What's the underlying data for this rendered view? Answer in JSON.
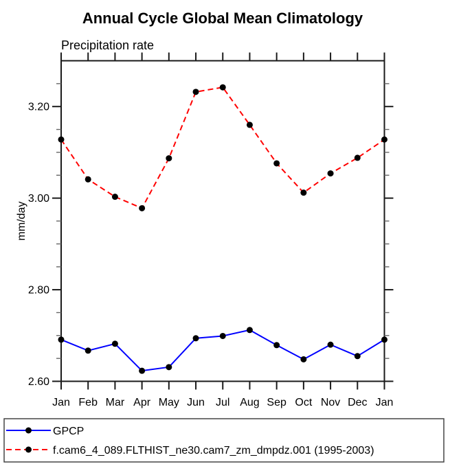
{
  "page": {
    "background": "#ffffff",
    "text_color": "#000000",
    "axis_color": "#1a1a1a",
    "minor_tick_color": "#666666"
  },
  "chart_data": {
    "type": "line",
    "title": "Annual Cycle Global Mean Climatology",
    "left_string": "Precipitation rate",
    "xlabel": "",
    "ylabel": "mm/day",
    "categories": [
      "Jan",
      "Feb",
      "Mar",
      "Apr",
      "May",
      "Jun",
      "Jul",
      "Aug",
      "Sep",
      "Oct",
      "Nov",
      "Dec",
      "Jan"
    ],
    "ylim": [
      2.6,
      3.3
    ],
    "y_major_ticks": [
      2.6,
      2.8,
      3.0,
      3.2
    ],
    "y_minor_step": 0.05,
    "y_tick_decimals": 2,
    "grid": false,
    "legend_position": "bottom-left-box",
    "series": [
      {
        "name": "GPCP",
        "color": "#0000ff",
        "line_style": "solid",
        "marker": "filled-circle",
        "marker_color": "#000000",
        "values": [
          2.691,
          2.667,
          2.682,
          2.623,
          2.631,
          2.694,
          2.699,
          2.712,
          2.679,
          2.648,
          2.68,
          2.655,
          2.691
        ]
      },
      {
        "name": "f.cam6_4_089.FLTHIST_ne30.cam7_zm_dmpdz.001 (1995-2003)",
        "color": "#ff0000",
        "line_style": "dashed",
        "marker": "filled-circle",
        "marker_color": "#000000",
        "values": [
          3.128,
          3.041,
          3.003,
          2.978,
          3.087,
          3.232,
          3.242,
          3.16,
          3.076,
          3.012,
          3.054,
          3.088,
          3.128
        ]
      }
    ]
  }
}
